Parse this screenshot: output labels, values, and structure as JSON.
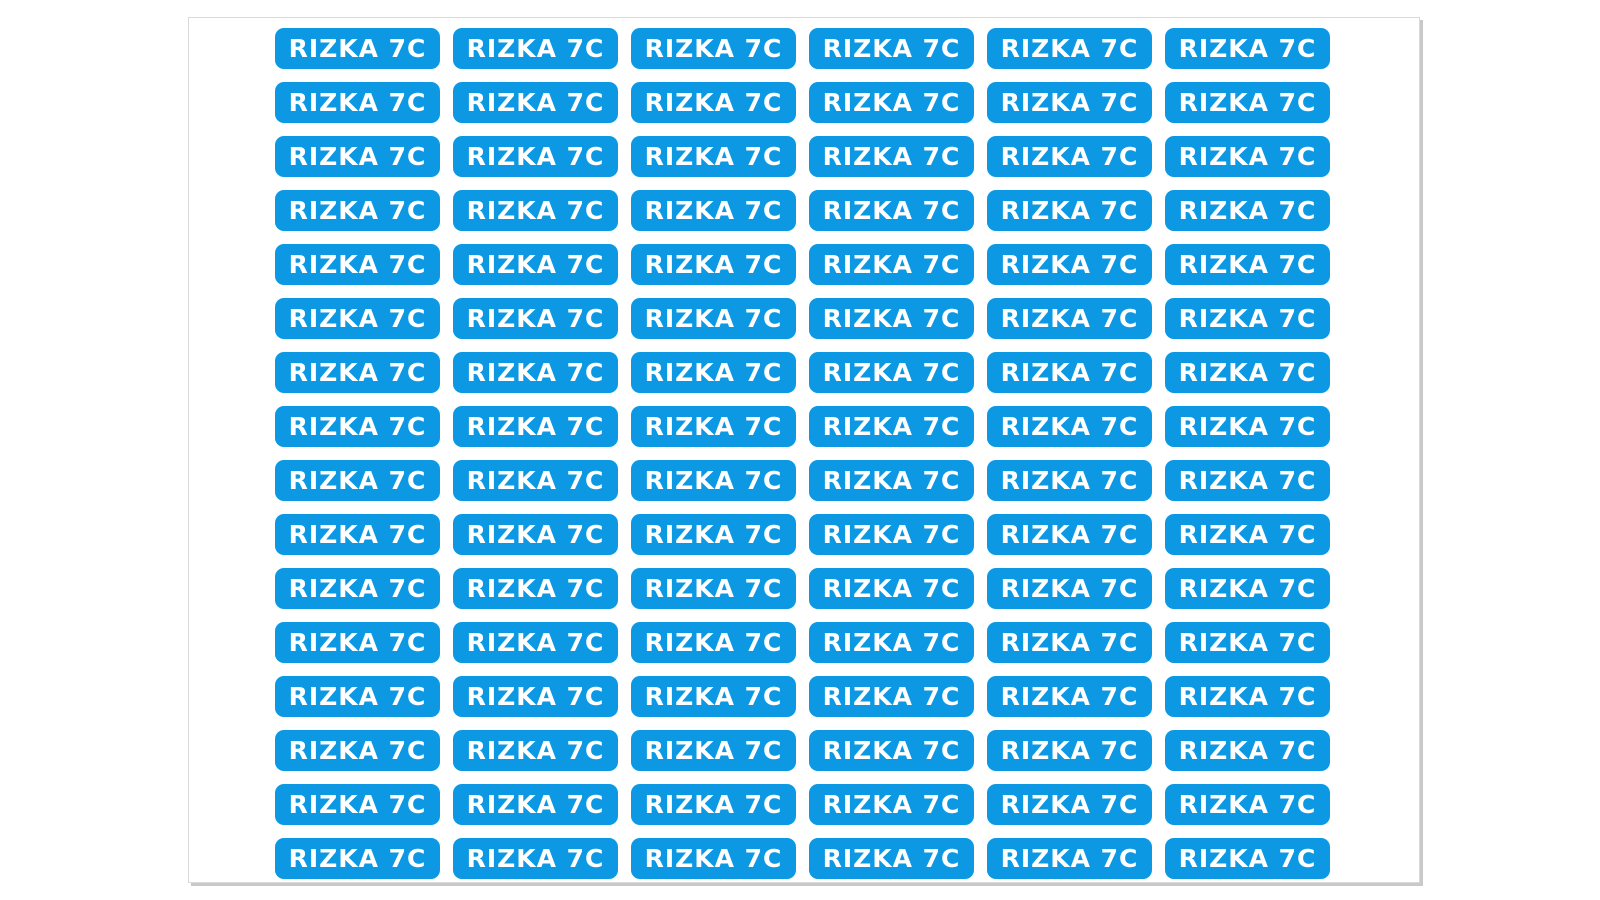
{
  "sheet": {
    "label_text": "RIZKA 7C",
    "rows": 16,
    "columns": 6,
    "label_color": "#0c98e3",
    "text_color": "#ffffff"
  }
}
